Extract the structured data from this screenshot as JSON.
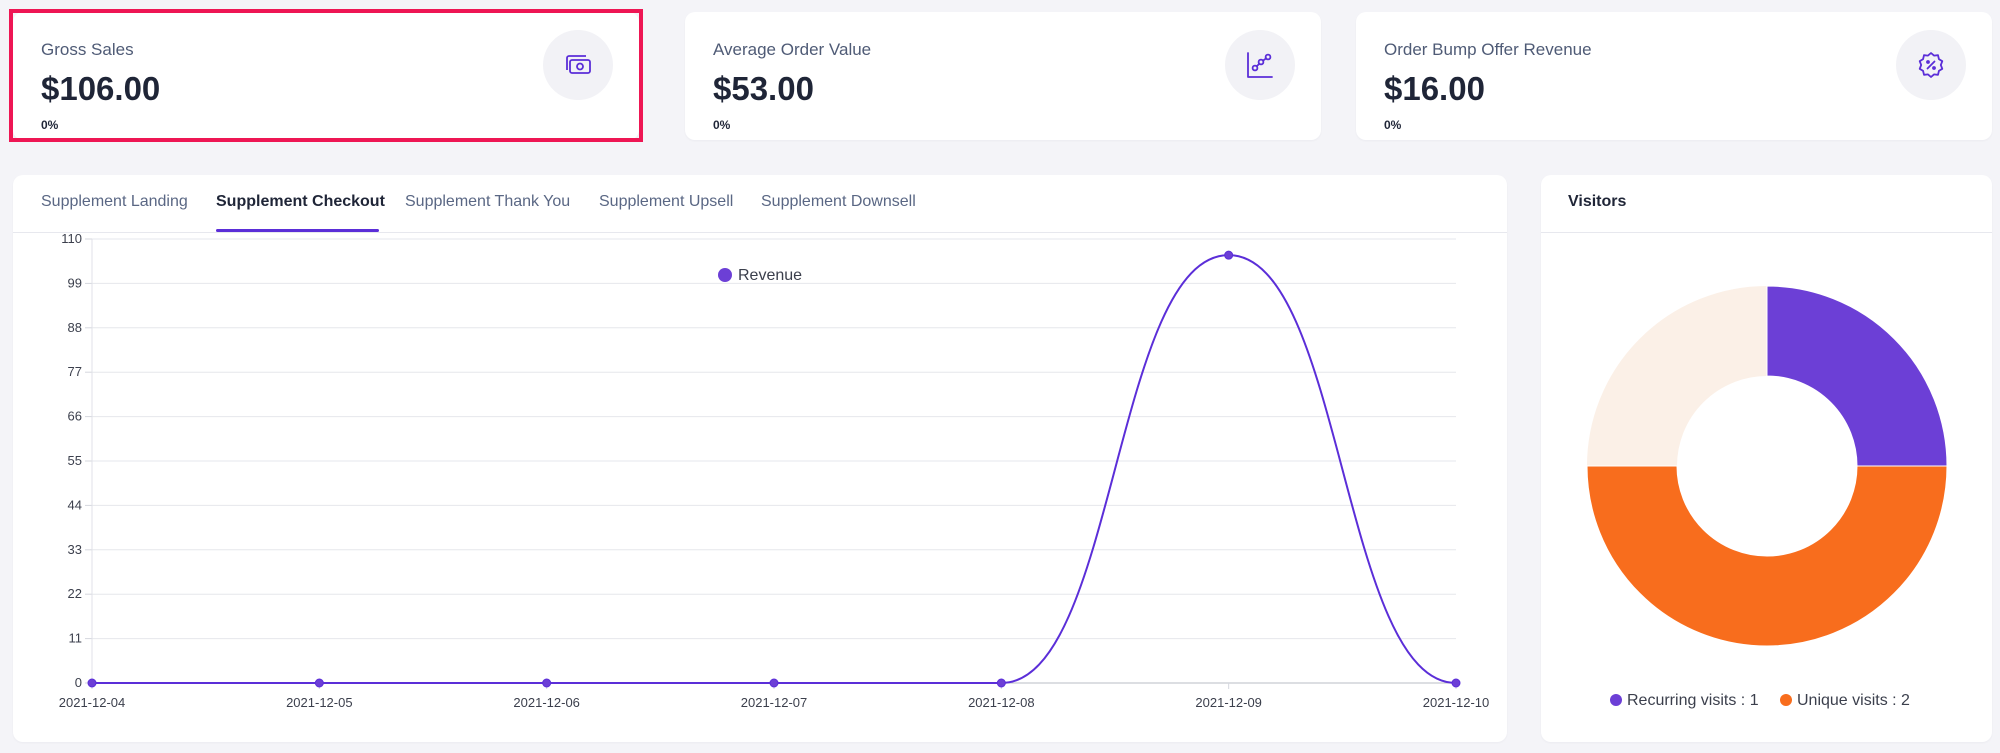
{
  "stats": [
    {
      "title": "Gross Sales",
      "value": "$106.00",
      "change": "0%",
      "icon": "money-icon"
    },
    {
      "title": "Average Order Value",
      "value": "$53.00",
      "change": "0%",
      "icon": "chart-icon"
    },
    {
      "title": "Order Bump Offer Revenue",
      "value": "$16.00",
      "change": "0%",
      "icon": "discount-badge-icon"
    }
  ],
  "tabs": [
    {
      "label": "Supplement Landing",
      "active": false
    },
    {
      "label": "Supplement Checkout",
      "active": true
    },
    {
      "label": "Supplement Thank You",
      "active": false
    },
    {
      "label": "Supplement Upsell",
      "active": false
    },
    {
      "label": "Supplement Downsell",
      "active": false
    }
  ],
  "visitors": {
    "title": "Visitors",
    "legend": [
      {
        "label": "Recurring visits : 1",
        "color": "#6c3fd6"
      },
      {
        "label": "Unique visits : 2",
        "color": "#f86d1d"
      }
    ]
  },
  "colors": {
    "accent": "#5b2ed8",
    "highlight": "#ee1654",
    "donut_rest": "#fbf0e7"
  },
  "chart_data": [
    {
      "type": "line",
      "series": [
        {
          "name": "Revenue",
          "color": "#5b2ed8",
          "values": [
            0,
            0,
            0,
            0,
            0,
            106,
            0
          ]
        }
      ],
      "x": [
        "2021-12-04",
        "2021-12-05",
        "2021-12-06",
        "2021-12-07",
        "2021-12-08",
        "2021-12-09",
        "2021-12-10"
      ],
      "ylim": [
        0,
        110
      ],
      "yticks": [
        0,
        11,
        22,
        33,
        44,
        55,
        66,
        77,
        88,
        99,
        110
      ],
      "legend": "top-center",
      "grid": true
    },
    {
      "type": "pie",
      "donut": true,
      "slices": [
        {
          "label": "Recurring visits",
          "value": 1,
          "color": "#6c3fd6"
        },
        {
          "label": "Unique visits",
          "value": 2,
          "color": "#f86d1d"
        }
      ]
    }
  ]
}
